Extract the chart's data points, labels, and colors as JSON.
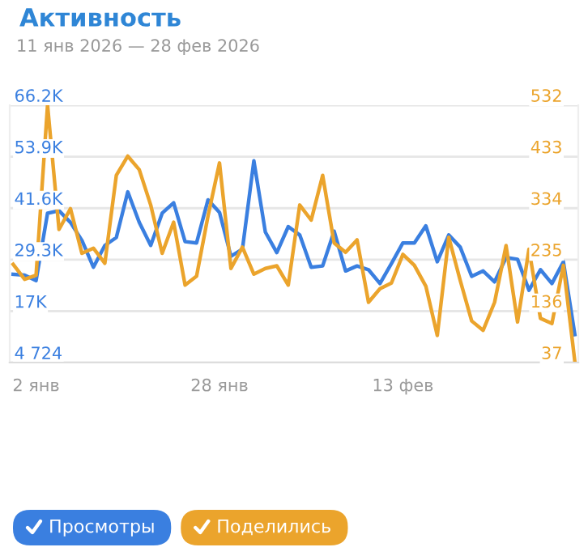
{
  "chart_data": {
    "type": "line",
    "title": "Активность",
    "subtitle": "11 янв 2026 — 28 фев 2026",
    "categories": [
      null,
      null,
      "2 янв",
      null,
      null,
      null,
      null,
      null,
      null,
      null,
      null,
      null,
      null,
      null,
      null,
      null,
      null,
      null,
      "28 янв",
      null,
      null,
      null,
      null,
      null,
      null,
      null,
      null,
      null,
      null,
      null,
      null,
      null,
      null,
      null,
      "13 фев",
      null,
      null,
      null,
      null,
      null,
      null,
      null,
      null,
      null,
      null,
      null,
      null,
      null,
      null,
      null
    ],
    "series": [
      {
        "name": "Просмотры",
        "color": "#3a7fe0",
        "values": [
          25800,
          25600,
          24300,
          40400,
          41000,
          38200,
          33900,
          27500,
          32700,
          34600,
          45500,
          38200,
          32700,
          40400,
          42900,
          33600,
          33300,
          43600,
          40600,
          30100,
          31800,
          52900,
          35900,
          31000,
          37200,
          35200,
          27500,
          27800,
          36100,
          26600,
          27800,
          26900,
          23600,
          28400,
          33300,
          33300,
          37400,
          28800,
          35200,
          32300,
          25300,
          26600,
          24000,
          29800,
          29400,
          22000,
          26900,
          23600,
          28800,
          11400
        ]
      },
      {
        "name": "Поделились",
        "color": "#eba42c",
        "axis": "y2",
        "values": [
          226,
          197,
          205,
          532,
          293,
          333,
          247,
          257,
          228,
          397,
          434,
          408,
          340,
          247,
          307,
          186,
          203,
          319,
          421,
          218,
          259,
          207,
          218,
          223,
          186,
          340,
          311,
          397,
          267,
          249,
          273,
          153,
          179,
          190,
          245,
          224,
          184,
          89,
          278,
          195,
          117,
          99,
          153,
          262,
          115,
          255,
          122,
          112,
          224,
          39
        ]
      }
    ],
    "ylim": [
      4724,
      66200
    ],
    "yticks": [
      {
        "value": 4724,
        "label": "4 724"
      },
      {
        "value": 17000,
        "label": "17K"
      },
      {
        "value": 29300,
        "label": "29.3K"
      },
      {
        "value": 41600,
        "label": "41.6K"
      },
      {
        "value": 53900,
        "label": "53.9K"
      },
      {
        "value": 66200,
        "label": "66.2K"
      }
    ],
    "y2lim": [
      37,
      532
    ],
    "y2ticks": [
      37,
      136,
      235,
      334,
      433,
      532
    ],
    "grid": "y",
    "legend": "bottom",
    "marker": "none",
    "line_style": "solid"
  }
}
